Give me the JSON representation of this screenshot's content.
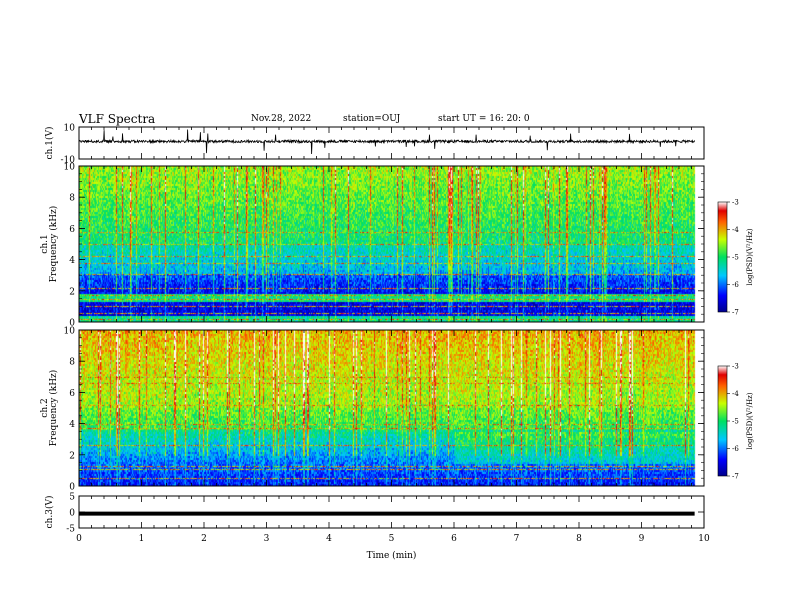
{
  "header": {
    "title": "VLF Spectra",
    "date": "Nov.28, 2022",
    "station": "station=OUJ",
    "start": "start  UT =   16: 20: 0"
  },
  "chart_data": [
    {
      "type": "line",
      "ylabel": "ch.1(V)",
      "ylim": [
        -10,
        10
      ],
      "yticks": [
        "10",
        "-10"
      ],
      "x": [
        0,
        9.85
      ],
      "baseline": 1,
      "description_values": "noisy waveform around ~1 V with occasional spikes"
    },
    {
      "type": "heatmap",
      "ylabel": [
        "ch.1",
        "Frequency  (kHz)"
      ],
      "ylim": [
        0,
        10
      ],
      "yticks": [
        "0",
        "2",
        "4",
        "6",
        "8",
        "10"
      ],
      "colorbar": {
        "label": "log(PSD)(V²/Hz)",
        "range": [
          -7,
          -3
        ],
        "ticks": [
          "-3",
          "-4",
          "-5",
          "-6",
          "-7"
        ]
      }
    },
    {
      "type": "heatmap",
      "ylabel": [
        "ch.2",
        "Frequency  (kHz)"
      ],
      "ylim": [
        0,
        10
      ],
      "yticks": [
        "0",
        "2",
        "4",
        "6",
        "8",
        "10"
      ],
      "colorbar": {
        "label": "log(PSD)(V²/Hz)",
        "range": [
          -7,
          -3
        ],
        "ticks": [
          "-3",
          "-4",
          "-5",
          "-6",
          "-7"
        ]
      }
    },
    {
      "type": "line",
      "ylabel": "ch.3(V)",
      "ylim": [
        -5,
        5
      ],
      "yticks": [
        "5",
        "0",
        "-5"
      ],
      "x": [
        0,
        9.85
      ],
      "baseline": -0.5
    }
  ],
  "xaxis": {
    "label": "Time  (min)",
    "range": [
      0,
      10
    ],
    "ticks": [
      "0",
      "1",
      "2",
      "3",
      "4",
      "5",
      "6",
      "7",
      "8",
      "9",
      "10"
    ]
  }
}
